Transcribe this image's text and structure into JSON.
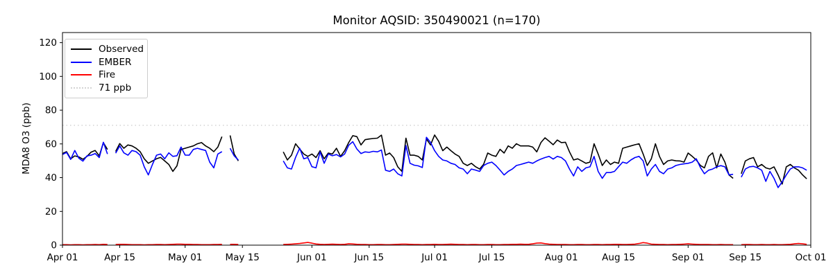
{
  "title": "Monitor AQSID: 350490021 (n=170)",
  "y_axis": {
    "label": "MDA8 O3 (ppb)",
    "ticks": [
      0,
      20,
      40,
      60,
      80,
      100,
      120
    ]
  },
  "x_axis": {
    "ticks": [
      {
        "day": 0,
        "label": "Apr 01"
      },
      {
        "day": 14,
        "label": "Apr 15"
      },
      {
        "day": 30,
        "label": "May 01"
      },
      {
        "day": 44,
        "label": "May 15"
      },
      {
        "day": 61,
        "label": "Jun 01"
      },
      {
        "day": 75,
        "label": "Jun 15"
      },
      {
        "day": 91,
        "label": "Jul 01"
      },
      {
        "day": 105,
        "label": "Jul 15"
      },
      {
        "day": 122,
        "label": "Aug 01"
      },
      {
        "day": 136,
        "label": "Aug 15"
      },
      {
        "day": 153,
        "label": "Sep 01"
      },
      {
        "day": 167,
        "label": "Sep 15"
      },
      {
        "day": 183,
        "label": "Oct 01"
      }
    ]
  },
  "legend": {
    "items": [
      {
        "label": "Observed",
        "color": "#000000",
        "style": "solid"
      },
      {
        "label": "EMBER",
        "color": "#0000ff",
        "style": "solid"
      },
      {
        "label": "Fire",
        "color": "#ff0000",
        "style": "solid"
      },
      {
        "label": "71 ppb",
        "color": "#d3d3d3",
        "style": "dotted"
      }
    ]
  },
  "chart_data": {
    "type": "line",
    "title": "Monitor AQSID: 350490021 (n=170)",
    "xlabel": "",
    "ylabel": "MDA8 O3 (ppb)",
    "x_start": "Apr 01",
    "x_end": "Oct 01",
    "x_unit": "day",
    "n_days": 183,
    "n_observations": 170,
    "ylim": [
      0,
      126
    ],
    "grid": false,
    "legend_position": "upper left",
    "threshold": {
      "value": 71,
      "label": "71 ppb",
      "color": "#d3d3d3",
      "style": "dotted"
    },
    "missing_dates": [
      "Apr 13",
      "May 11",
      "May 15",
      "May 16",
      "May 17",
      "May 18",
      "May 19",
      "May 20",
      "May 21",
      "May 22",
      "May 23",
      "May 24",
      "Sep 13"
    ],
    "series": [
      {
        "name": "Observed",
        "color": "#000000",
        "values": [
          54.3,
          55.4,
          51.2,
          52.9,
          52.3,
          50.9,
          52.6,
          55.1,
          56.1,
          52.9,
          60.7,
          56.7,
          null,
          55.5,
          60.2,
          57.4,
          59.4,
          58.8,
          57.4,
          55.4,
          51.2,
          48.5,
          49.9,
          51.2,
          52,
          49.9,
          47.8,
          43.7,
          47,
          56.7,
          57.4,
          58.1,
          58.8,
          60.1,
          60.8,
          58.8,
          57.4,
          55.4,
          58.1,
          64.3,
          null,
          65,
          54,
          49.9,
          null,
          null,
          null,
          null,
          null,
          null,
          null,
          null,
          null,
          null,
          55.3,
          50.5,
          53.3,
          60.1,
          57,
          54,
          52.6,
          54,
          51.9,
          56,
          51.2,
          54.6,
          54,
          57.4,
          52.6,
          56,
          60.8,
          64.9,
          64.3,
          59.4,
          62.5,
          62.9,
          63.2,
          63.4,
          65.2,
          53.3,
          54.6,
          51.9,
          46.4,
          43.7,
          63.4,
          53.3,
          53.3,
          52.6,
          50.5,
          62.9,
          59.4,
          65.3,
          61.6,
          56,
          58.1,
          56,
          54,
          52.6,
          48.5,
          47.2,
          48.5,
          46.5,
          45.1,
          47.9,
          54.6,
          53.3,
          52.6,
          56.8,
          54.6,
          58.8,
          57.4,
          60.1,
          58.8,
          58.8,
          58.8,
          58.1,
          55.3,
          60.8,
          63.6,
          61.6,
          59.5,
          62.3,
          60.8,
          61,
          55.3,
          50.5,
          51.2,
          49.9,
          48.5,
          49.2,
          60.1,
          54,
          47.2,
          50.5,
          47.8,
          49.2,
          48.5,
          57.4,
          58.1,
          58.8,
          59.5,
          60.1,
          54,
          47.2,
          51.2,
          60.1,
          52.6,
          47.8,
          49.9,
          50.5,
          50,
          49.9,
          49.2,
          54.6,
          52.6,
          50.5,
          47.2,
          45.8,
          52.6,
          54.7,
          45.8,
          54,
          49.2,
          41.6,
          39.6,
          null,
          42.3,
          49.9,
          51.2,
          51.9,
          46.4,
          47.8,
          45.8,
          45.1,
          46.4,
          41.6,
          36.2,
          46.4,
          47.8,
          45.8,
          44.4,
          41.6,
          39.3
        ]
      },
      {
        "name": "EMBER",
        "color": "#0000ff",
        "values": [
          53.7,
          55,
          50.8,
          56.1,
          51.5,
          49.8,
          52.9,
          53.3,
          54.3,
          51.9,
          61,
          54,
          null,
          54.5,
          58.8,
          54.7,
          53.3,
          56.1,
          55.4,
          53.3,
          46.4,
          41.6,
          47.8,
          53.3,
          54,
          51.2,
          54.7,
          52.6,
          53,
          58.1,
          53.4,
          53.3,
          56.7,
          57.4,
          56.7,
          56.1,
          49.2,
          45.8,
          54,
          55.4,
          null,
          57.4,
          52.9,
          50.5,
          null,
          null,
          null,
          null,
          null,
          null,
          null,
          null,
          null,
          null,
          49.9,
          45.8,
          45.1,
          52,
          57.4,
          51.2,
          51.9,
          46.5,
          45.8,
          55.3,
          48.5,
          54,
          53,
          53.7,
          52.3,
          54,
          59.2,
          61.3,
          57,
          54.3,
          55.3,
          55,
          55.6,
          55.3,
          56.4,
          44.4,
          43.7,
          45.1,
          42.3,
          41,
          59,
          48.5,
          47.4,
          47,
          46,
          63.9,
          60.9,
          56,
          52.6,
          50.5,
          49.9,
          48.5,
          47.8,
          45.8,
          45.1,
          42.3,
          45.1,
          44.5,
          43.7,
          47.2,
          48.5,
          49.2,
          47.2,
          44.5,
          41.6,
          43.7,
          45.1,
          47.2,
          47.8,
          48.5,
          49.2,
          48.5,
          49.9,
          51,
          51.9,
          52.6,
          51,
          52.6,
          51.9,
          49.9,
          45.1,
          41,
          46.4,
          43.7,
          45.8,
          46.4,
          52.6,
          43.7,
          39.6,
          43,
          43,
          43.7,
          46.5,
          49.2,
          48.5,
          50.5,
          51.9,
          52.6,
          49.9,
          41,
          45.1,
          47.8,
          43.7,
          42.3,
          45.1,
          45.8,
          47.2,
          47.8,
          48.2,
          48.5,
          49.2,
          51.2,
          46,
          42.3,
          44.4,
          45.1,
          46.4,
          47.1,
          46.4,
          41.6,
          42,
          null,
          40.3,
          45.1,
          46.4,
          46.7,
          45.8,
          44.4,
          37.8,
          43.7,
          39.6,
          34.1,
          37.5,
          41.6,
          45.1,
          46.4,
          46.4,
          45.8,
          44.4
        ]
      },
      {
        "name": "Fire",
        "color": "#ff0000",
        "values": [
          0.3,
          0.3,
          0.2,
          0.3,
          0.3,
          0.2,
          0.3,
          0.3,
          0.4,
          0.3,
          0.5,
          0.4,
          null,
          0.4,
          0.5,
          0.5,
          0.4,
          0.3,
          0.3,
          0.3,
          0.2,
          0.3,
          0.3,
          0.4,
          0.4,
          0.3,
          0.4,
          0.5,
          0.6,
          0.6,
          0.5,
          0.5,
          0.4,
          0.4,
          0.3,
          0.3,
          0.3,
          0.4,
          0.4,
          0.5,
          null,
          0.5,
          0.5,
          0.4,
          null,
          null,
          null,
          null,
          null,
          null,
          null,
          null,
          null,
          null,
          0.4,
          0.5,
          0.6,
          0.8,
          1,
          1.3,
          1.6,
          1.2,
          0.7,
          0.5,
          0.4,
          0.5,
          0.6,
          0.5,
          0.4,
          0.5,
          0.8,
          0.7,
          0.5,
          0.4,
          0.4,
          0.3,
          0.3,
          0.4,
          0.4,
          0.3,
          0.3,
          0.4,
          0.5,
          0.6,
          0.6,
          0.5,
          0.4,
          0.4,
          0.3,
          0.4,
          0.4,
          0.5,
          0.4,
          0.4,
          0.5,
          0.6,
          0.5,
          0.4,
          0.4,
          0.3,
          0.4,
          0.4,
          0.3,
          0.3,
          0.4,
          0.4,
          0.3,
          0.3,
          0.4,
          0.4,
          0.5,
          0.5,
          0.6,
          0.5,
          0.5,
          0.8,
          1.2,
          1.3,
          0.9,
          0.6,
          0.5,
          0.4,
          0.4,
          0.4,
          0.3,
          0.3,
          0.4,
          0.4,
          0.3,
          0.3,
          0.4,
          0.4,
          0.3,
          0.4,
          0.4,
          0.5,
          0.5,
          0.4,
          0.4,
          0.5,
          0.6,
          1,
          1.5,
          1.2,
          0.6,
          0.5,
          0.4,
          0.4,
          0.3,
          0.4,
          0.4,
          0.5,
          0.6,
          0.8,
          0.6,
          0.5,
          0.4,
          0.4,
          0.4,
          0.3,
          0.3,
          0.4,
          0.3,
          0.3,
          0.3,
          null,
          0.3,
          0.4,
          0.4,
          0.3,
          0.3,
          0.4,
          0.3,
          0.3,
          0.4,
          0.3,
          0.3,
          0.4,
          0.5,
          0.8,
          1,
          0.8,
          0.5
        ]
      }
    ]
  }
}
